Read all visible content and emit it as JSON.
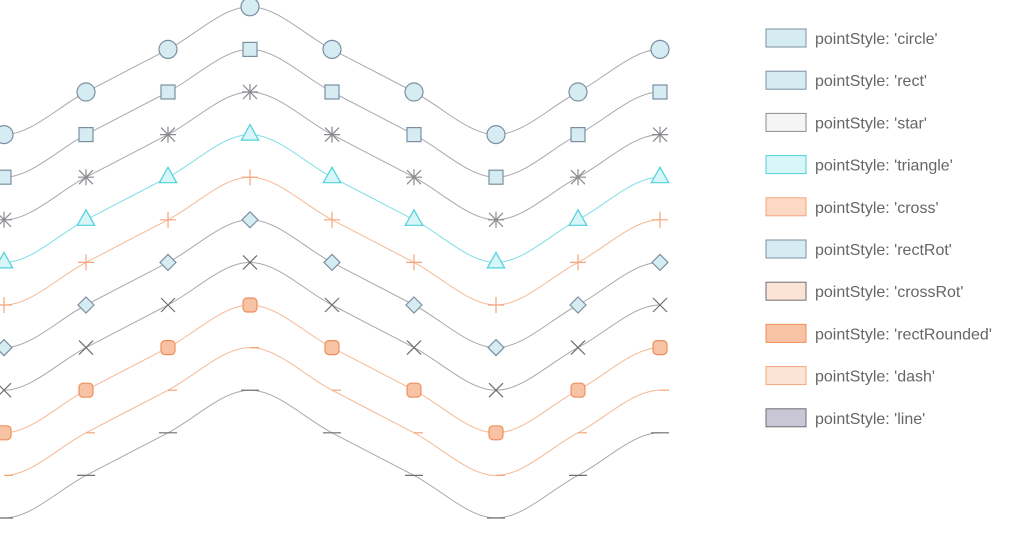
{
  "chart_data": {
    "type": "line",
    "title": "",
    "x": [
      0,
      1,
      2,
      3,
      4,
      5,
      6,
      7,
      8
    ],
    "ylim": [
      -1,
      11.2
    ],
    "grid": false,
    "legend_placement": "right",
    "series": [
      {
        "name": "pointStyle: 'circle'",
        "point_style": "circle",
        "color": "#a9a9ad",
        "fill": "#d6ecf3",
        "stroke": "#7b8fa0",
        "values": [
          9,
          10,
          11,
          12,
          11,
          10,
          9,
          10,
          11
        ]
      },
      {
        "name": "pointStyle: 'rect'",
        "point_style": "rect",
        "color": "#a9a9ad",
        "fill": "#d6ecf3",
        "stroke": "#7b8fa0",
        "values": [
          8,
          9,
          10,
          11,
          10,
          9,
          8,
          9,
          10
        ]
      },
      {
        "name": "pointStyle: 'star'",
        "point_style": "star",
        "color": "#a9a9ad",
        "fill": "#f5f5f5",
        "stroke": "#8a8a90",
        "values": [
          7,
          8,
          9,
          10,
          9,
          8,
          7,
          8,
          9
        ]
      },
      {
        "name": "pointStyle: 'triangle'",
        "point_style": "triangle",
        "color": "#7fdfe6",
        "fill": "#d8f5f7",
        "stroke": "#4fd1db",
        "values": [
          6,
          7,
          8,
          9,
          8,
          7,
          6,
          7,
          8
        ]
      },
      {
        "name": "pointStyle: 'cross'",
        "point_style": "cross",
        "color": "#f6b993",
        "fill": "#fbd9c4",
        "stroke": "#f4a57a",
        "values": [
          5,
          6,
          7,
          8,
          7,
          6,
          5,
          6,
          7
        ]
      },
      {
        "name": "pointStyle: 'rectRot'",
        "point_style": "rectRot",
        "color": "#a9a9ad",
        "fill": "#d6ecf3",
        "stroke": "#7b8fa0",
        "values": [
          4,
          5,
          6,
          7,
          6,
          5,
          4,
          5,
          6
        ]
      },
      {
        "name": "pointStyle: 'crossRot'",
        "point_style": "crossRot",
        "color": "#a9a9ad",
        "fill": "#fbe3d5",
        "stroke": "#6e6e74",
        "values": [
          3,
          4,
          5,
          6,
          5,
          4,
          3,
          4,
          5
        ]
      },
      {
        "name": "pointStyle: 'rectRounded'",
        "point_style": "rectRounded",
        "color": "#f6b993",
        "fill": "#f8c3a4",
        "stroke": "#ee8f5c",
        "values": [
          2,
          3,
          4,
          5,
          4,
          3,
          2,
          3,
          4
        ]
      },
      {
        "name": "pointStyle: 'dash'",
        "point_style": "dash",
        "color": "#f6b993",
        "fill": "#fbe3d5",
        "stroke": "#f4a57a",
        "values": [
          1,
          2,
          3,
          4,
          3,
          2,
          1,
          2,
          3
        ]
      },
      {
        "name": "pointStyle: 'line'",
        "point_style": "line",
        "color": "#a9a9ad",
        "fill": "#c9c7d6",
        "stroke": "#6e6e74",
        "values": [
          0,
          1,
          2,
          3,
          2,
          1,
          0,
          1,
          2
        ]
      }
    ]
  }
}
